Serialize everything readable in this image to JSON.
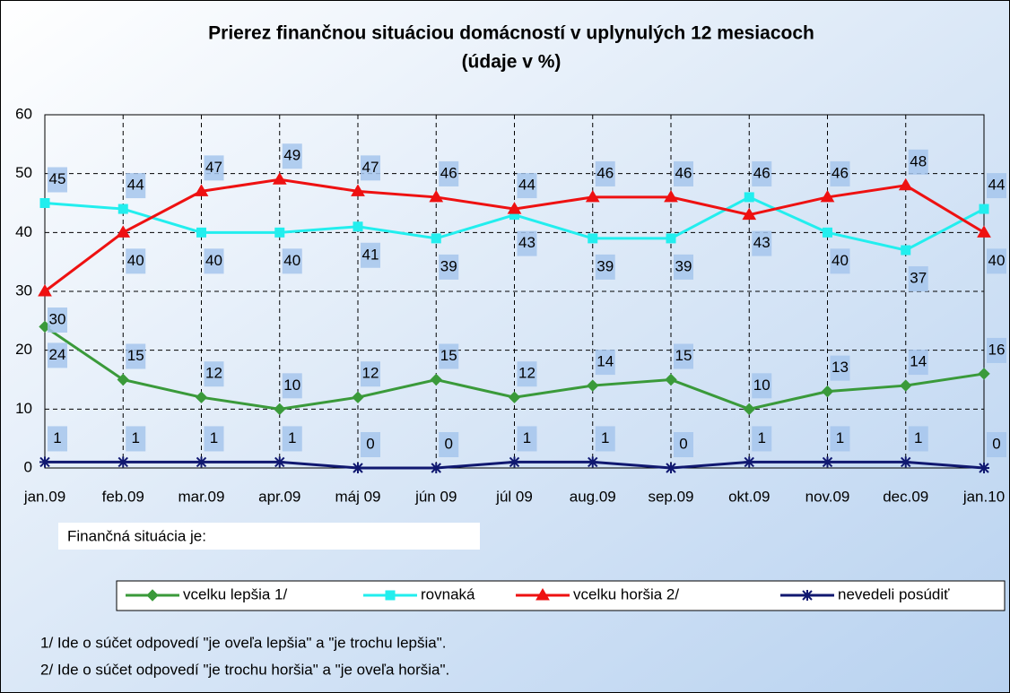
{
  "chart_data": {
    "type": "line",
    "title": "Prierez finančnou situáciou domácností v uplynulých 12 mesiacoch",
    "subtitle": "(údaje v %)",
    "categories": [
      "jan.09",
      "feb.09",
      "mar.09",
      "apr.09",
      "máj 09",
      "jún 09",
      "júl 09",
      "aug.09",
      "sep.09",
      "okt.09",
      "nov.09",
      "dec.09",
      "jan.10"
    ],
    "series": [
      {
        "name": "vcelku lepšia 1/",
        "color": "#3a9a3a",
        "marker": "diamond",
        "values": [
          24,
          15,
          12,
          10,
          12,
          15,
          12,
          14,
          15,
          10,
          13,
          14,
          16
        ]
      },
      {
        "name": "rovnaká",
        "color": "#22eeee",
        "marker": "square",
        "values": [
          45,
          44,
          40,
          40,
          41,
          39,
          43,
          39,
          39,
          46,
          40,
          37,
          44
        ]
      },
      {
        "name": "vcelku horšia 2/",
        "color": "#ee1111",
        "marker": "triangle",
        "values": [
          30,
          40,
          47,
          49,
          47,
          46,
          44,
          46,
          46,
          43,
          46,
          48,
          40
        ]
      },
      {
        "name": "nevedeli posúdiť",
        "color": "#101870",
        "marker": "star",
        "values": [
          1,
          1,
          1,
          1,
          0,
          0,
          1,
          1,
          0,
          1,
          1,
          1,
          0
        ]
      }
    ],
    "ylim": [
      0,
      60
    ],
    "yticks": [
      0,
      10,
      20,
      30,
      40,
      50,
      60
    ],
    "grid": true,
    "annotation": "Finančná situácia je:",
    "notes": [
      "1/ Ide o súčet odpovedí \"je oveľa lepšia\" a \"je trochu lepšia\".",
      "2/ Ide o súčet odpovedí \"je trochu horšia\" a \"je oveľa horšia\"."
    ]
  }
}
